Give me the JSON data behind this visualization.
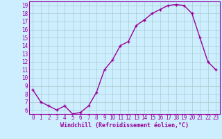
{
  "x": [
    0,
    1,
    2,
    3,
    4,
    5,
    6,
    7,
    8,
    9,
    10,
    11,
    12,
    13,
    14,
    15,
    16,
    17,
    18,
    19,
    20,
    21,
    22,
    23
  ],
  "y": [
    8.5,
    7.0,
    6.5,
    6.0,
    6.5,
    5.5,
    5.7,
    6.5,
    8.2,
    11.0,
    12.2,
    14.0,
    14.5,
    16.5,
    17.2,
    18.0,
    18.5,
    19.0,
    19.1,
    19.0,
    18.0,
    15.0,
    12.0,
    11.0
  ],
  "line_color": "#990099",
  "marker": "+",
  "marker_size": 3,
  "marker_lw": 1.0,
  "bg_color": "#cceeff",
  "grid_color": "#aacccc",
  "xlabel": "Windchill (Refroidissement éolien,°C)",
  "xlim": [
    -0.5,
    23.5
  ],
  "ylim": [
    5.5,
    19.5
  ],
  "yticks": [
    6,
    7,
    8,
    9,
    10,
    11,
    12,
    13,
    14,
    15,
    16,
    17,
    18,
    19
  ],
  "xticks": [
    0,
    1,
    2,
    3,
    4,
    5,
    6,
    7,
    8,
    9,
    10,
    11,
    12,
    13,
    14,
    15,
    16,
    17,
    18,
    19,
    20,
    21,
    22,
    23
  ],
  "xlabel_color": "#990099",
  "tick_color": "#990099",
  "spine_color": "#990099",
  "tick_fontsize": 5.5,
  "xlabel_fontsize": 6.0,
  "line_width": 1.0
}
